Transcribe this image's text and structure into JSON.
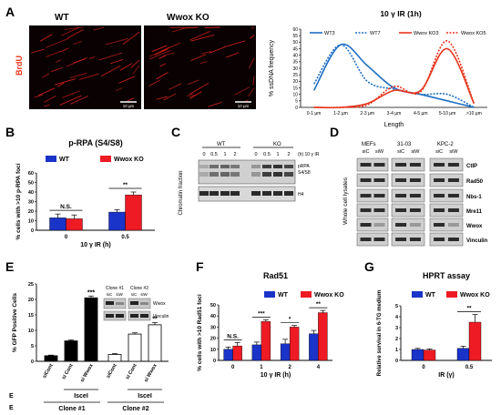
{
  "panel_letters": {
    "A": "A",
    "B": "B",
    "C": "C",
    "D": "D",
    "E": "E",
    "F": "F",
    "G": "G"
  },
  "panel_a": {
    "microscopy": {
      "left_title": "WT",
      "right_title": "Wwox KO",
      "ylabel": "BrdU",
      "scalebar": "10 µm"
    },
    "chart_title": "10 γ IR (1h)",
    "colors": {
      "WT": "#1f6fc4",
      "KO": "#e8341c"
    }
  },
  "panel_b": {
    "title": "p-RPA (S4/S8)",
    "ns_label": "N.S.",
    "sig_label": "**"
  },
  "panel_c": {
    "wt_label": "WT",
    "ko_label": "KO",
    "time_labels": [
      "0",
      "0.5",
      "1",
      "2",
      "0",
      "0.5",
      "1",
      "2"
    ],
    "time_unit": "(h) 10 γ IR",
    "side_label": "Chromatin fraction",
    "bands": [
      "pRPA S4/S8",
      "H4"
    ]
  },
  "panel_d": {
    "side_label": "Whole cell lysates",
    "groups": [
      "MEFs",
      "31-03",
      "KPC-2"
    ],
    "lane_labels": [
      "siC",
      "siW",
      "siC",
      "siW",
      "siC",
      "siW"
    ],
    "bands": [
      "CtIP",
      "Rad50",
      "Nbs-1",
      "Mre11",
      "Wwox",
      "Vinculin"
    ]
  },
  "panel_e": {
    "inset_clones": [
      "Clone #1",
      "Clone #2"
    ],
    "inset_lanes": [
      "siC",
      "siW",
      "siC",
      "siW"
    ],
    "inset_bands": [
      "Wwox",
      "Vinculin"
    ],
    "bar_labels": [
      "siCont",
      "si Cont",
      "si Wwox",
      "siCont",
      "si Cont",
      "si Wwox"
    ],
    "iscel_label": "IsceI",
    "e_marks": [
      "E",
      "E"
    ],
    "clone_labels": [
      "Clone #1",
      "Clone #2"
    ],
    "sig_labels": [
      "***",
      "**"
    ]
  },
  "panel_f": {
    "title": "Rad51",
    "sig_labels": [
      "N.S.",
      "***",
      "*",
      "**"
    ]
  },
  "panel_g": {
    "title": "HPRT assay",
    "sig_label": "**"
  },
  "chart_data": [
    {
      "type": "line",
      "panel": "A",
      "title": "10 γ IR (1h)",
      "xlabel": "Length",
      "ylabel": "% ssDNA frequency",
      "categories": [
        "0-1 µm",
        "1-2 µm",
        "2-3 µm",
        "3-4 µm",
        "4-5 µm",
        "5-10 µm",
        ">10 µm"
      ],
      "ylim": [
        0,
        60
      ],
      "yticks": [
        0,
        5,
        10,
        15,
        20,
        25,
        30,
        35,
        40,
        45,
        50,
        55,
        60
      ],
      "legend_position": "top",
      "series": [
        {
          "name": "WT3",
          "color": "#1f6fc4",
          "dashed": false,
          "values": [
            13,
            48,
            32,
            15,
            10,
            5,
            0
          ]
        },
        {
          "name": "WT7",
          "color": "#1f6fc4",
          "dashed": true,
          "values": [
            18,
            48,
            20,
            14,
            10,
            10,
            0
          ]
        },
        {
          "name": "Wwox KO3",
          "color": "#e8341c",
          "dashed": false,
          "values": [
            0,
            0,
            3,
            13,
            13,
            45,
            3
          ]
        },
        {
          "name": "Wwox KO5",
          "color": "#e8341c",
          "dashed": true,
          "values": [
            0,
            0,
            2,
            16,
            12,
            51,
            3
          ]
        }
      ]
    },
    {
      "type": "bar",
      "panel": "B",
      "title": "p-RPA (S4/S8)",
      "xlabel": "10 γ IR (h)",
      "ylabel": "% cells with >10 p-RPA foci",
      "categories": [
        "0",
        "0.5"
      ],
      "ylim": [
        0,
        60
      ],
      "yticks": [
        0,
        10,
        20,
        30,
        40,
        50,
        60
      ],
      "legend_position": "top",
      "series": [
        {
          "name": "WT",
          "color": "#1a33c9",
          "values": [
            13,
            19
          ],
          "errors": [
            4,
            2.5
          ]
        },
        {
          "name": "Wwox KO",
          "color": "#ee1b24",
          "values": [
            12,
            37
          ],
          "errors": [
            4,
            3
          ]
        }
      ]
    },
    {
      "type": "bar",
      "panel": "E",
      "ylabel": "% GFP Positive Cells",
      "categories": [
        "siCont",
        "si Cont",
        "si Wwox",
        "siCont",
        "si Cont",
        "si Wwox"
      ],
      "ylim": [
        0,
        25
      ],
      "yticks": [
        0,
        5,
        10,
        15,
        20,
        25
      ],
      "values": [
        1.8,
        6.6,
        20.5,
        2.2,
        8.8,
        11.8
      ],
      "errors": [
        0.2,
        0.3,
        0.6,
        0.3,
        0.4,
        0.7
      ],
      "colors": [
        "#000000",
        "#000000",
        "#000000",
        "#ffffff",
        "#ffffff",
        "#ffffff"
      ]
    },
    {
      "type": "bar",
      "panel": "F",
      "title": "Rad51",
      "xlabel": "10 γ IR (h)",
      "ylabel": "% cells with >10 Rad51 foci",
      "categories": [
        "0",
        "1",
        "2",
        "4"
      ],
      "ylim": [
        0,
        50
      ],
      "yticks": [
        0,
        10,
        20,
        30,
        40,
        50
      ],
      "legend_position": "top",
      "series": [
        {
          "name": "WT",
          "color": "#1a33c9",
          "values": [
            10,
            14,
            15,
            24
          ],
          "errors": [
            2,
            2.5,
            4,
            3
          ]
        },
        {
          "name": "Wwox KO",
          "color": "#ee1b24",
          "values": [
            13,
            35,
            30,
            43
          ],
          "errors": [
            3,
            1.5,
            1.5,
            2
          ]
        }
      ]
    },
    {
      "type": "bar",
      "panel": "G",
      "title": "HPRT assay",
      "xlabel": "IR (γ)",
      "ylabel": "Relative survival in 6-TG medium",
      "categories": [
        "0",
        "0.5"
      ],
      "ylim": [
        0,
        5
      ],
      "yticks": [
        0,
        1,
        2,
        3,
        4,
        5
      ],
      "legend_position": "top",
      "series": [
        {
          "name": "WT",
          "color": "#1a33c9",
          "values": [
            1.0,
            1.1
          ],
          "errors": [
            0.1,
            0.2
          ]
        },
        {
          "name": "Wwox KO",
          "color": "#ee1b24",
          "values": [
            0.95,
            3.5
          ],
          "errors": [
            0.1,
            0.7
          ]
        }
      ]
    }
  ]
}
